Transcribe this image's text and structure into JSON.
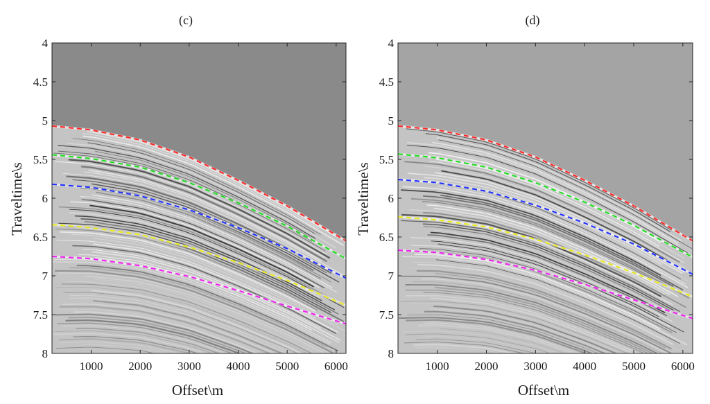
{
  "chart_data": [
    {
      "type": "line",
      "title": "(c)",
      "xlabel": "Offset\\m",
      "ylabel": "Traveltime\\s",
      "xlim": [
        200,
        6200
      ],
      "ylim": [
        8,
        4
      ],
      "y_reversed": true,
      "x_ticks": [
        1000,
        2000,
        3000,
        4000,
        5000,
        6000
      ],
      "y_ticks": [
        4,
        4.5,
        5,
        5.5,
        6,
        6.5,
        7,
        7.5,
        8
      ],
      "background": "seismic gather (grayscale wiggle image)",
      "mute_color": "#8a8a8a",
      "grid": false,
      "series": [
        {
          "color": "#ff2a2a",
          "style": "dashed",
          "x": [
            200,
            1000,
            2000,
            3000,
            4000,
            5000,
            6200
          ],
          "y": [
            5.07,
            5.12,
            5.25,
            5.47,
            5.77,
            6.1,
            6.55
          ]
        },
        {
          "color": "#22dd22",
          "style": "dashed",
          "x": [
            200,
            1000,
            2000,
            3000,
            4000,
            5000,
            6200
          ],
          "y": [
            5.44,
            5.49,
            5.6,
            5.8,
            6.06,
            6.36,
            6.78
          ]
        },
        {
          "color": "#2233ff",
          "style": "dashed",
          "x": [
            200,
            1000,
            2000,
            3000,
            4000,
            5000,
            6200
          ],
          "y": [
            5.82,
            5.86,
            5.97,
            6.15,
            6.38,
            6.65,
            7.03
          ]
        },
        {
          "color": "#e8e820",
          "style": "dashed",
          "x": [
            200,
            1000,
            2000,
            3000,
            4000,
            5000,
            6200
          ],
          "y": [
            6.34,
            6.38,
            6.47,
            6.63,
            6.83,
            7.06,
            7.38
          ]
        },
        {
          "color": "#ee22ee",
          "style": "dashed",
          "x": [
            200,
            1000,
            2000,
            3000,
            4000,
            5000,
            6200
          ],
          "y": [
            6.75,
            6.78,
            6.87,
            7.01,
            7.19,
            7.39,
            7.62
          ]
        }
      ]
    },
    {
      "type": "line",
      "title": "(d)",
      "xlabel": "Offset\\m",
      "ylabel": "Traveltime\\s",
      "xlim": [
        200,
        6200
      ],
      "ylim": [
        8,
        4
      ],
      "y_reversed": true,
      "x_ticks": [
        1000,
        2000,
        3000,
        4000,
        5000,
        6000
      ],
      "y_ticks": [
        4,
        4.5,
        5,
        5.5,
        6,
        6.5,
        7,
        7.5,
        8
      ],
      "background": "seismic gather (grayscale wiggle image)",
      "mute_color": "#a4a4a4",
      "grid": false,
      "series": [
        {
          "color": "#ff2a2a",
          "style": "dashed",
          "x": [
            200,
            1000,
            2000,
            3000,
            4000,
            5000,
            6200
          ],
          "y": [
            5.07,
            5.12,
            5.25,
            5.47,
            5.77,
            6.1,
            6.55
          ]
        },
        {
          "color": "#22dd22",
          "style": "dashed",
          "x": [
            200,
            1000,
            2000,
            3000,
            4000,
            5000,
            6200
          ],
          "y": [
            5.43,
            5.48,
            5.6,
            5.8,
            6.05,
            6.35,
            6.76
          ]
        },
        {
          "color": "#2233ff",
          "style": "dashed",
          "x": [
            200,
            1000,
            2000,
            3000,
            4000,
            5000,
            6200
          ],
          "y": [
            5.76,
            5.8,
            5.91,
            6.09,
            6.32,
            6.59,
            6.98
          ]
        },
        {
          "color": "#e8e820",
          "style": "dashed",
          "x": [
            200,
            1000,
            2000,
            3000,
            4000,
            5000,
            6200
          ],
          "y": [
            6.24,
            6.28,
            6.37,
            6.53,
            6.73,
            6.96,
            7.27
          ]
        },
        {
          "color": "#ee22ee",
          "style": "dashed",
          "x": [
            200,
            1000,
            2000,
            3000,
            4000,
            5000,
            6200
          ],
          "y": [
            6.67,
            6.7,
            6.79,
            6.93,
            7.11,
            7.31,
            7.55
          ]
        }
      ]
    }
  ]
}
